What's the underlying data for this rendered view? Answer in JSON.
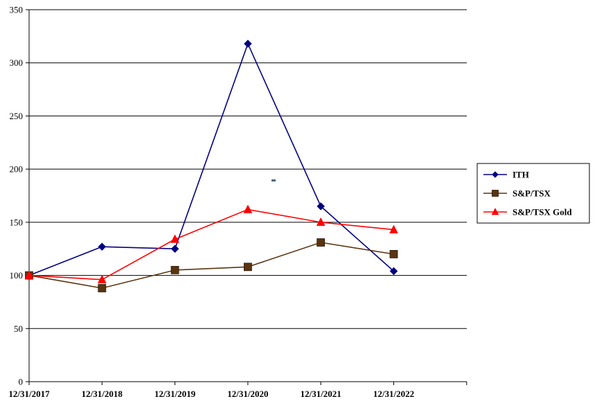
{
  "chart_data": {
    "type": "line",
    "title": "",
    "xlabel": "",
    "ylabel": "",
    "categories": [
      "12/31/2017",
      "12/31/2018",
      "12/31/2019",
      "12/31/2020",
      "12/31/2021",
      "12/31/2022"
    ],
    "ylim": [
      0,
      350
    ],
    "yticks": [
      "0",
      "50",
      "100",
      "150",
      "200",
      "250",
      "300",
      "350"
    ],
    "grid": true,
    "legend_position": "right",
    "series": [
      {
        "name": "ITH",
        "color": "#000080",
        "marker": "diamond",
        "values": [
          100,
          127,
          125,
          318,
          165,
          104
        ]
      },
      {
        "name": "S&P/TSX",
        "color": "#5a3410",
        "marker": "square",
        "values": [
          100,
          88,
          105,
          108,
          131,
          120
        ]
      },
      {
        "name": "S&P/TSX Gold",
        "color": "#ff0000",
        "marker": "triangle",
        "values": [
          100,
          96,
          134,
          162,
          150,
          143
        ]
      }
    ]
  }
}
